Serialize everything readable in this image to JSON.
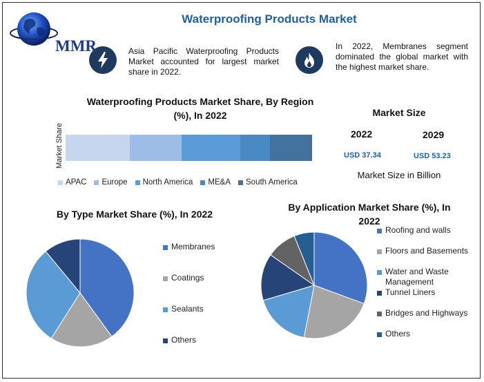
{
  "header": {
    "logo_text": "MMR",
    "title": "Waterproofing Products Market"
  },
  "info": [
    {
      "icon": "lightning-bolt-icon",
      "text": "Asia Pacific Waterproofing Products Market accounted for largest market share in 2022."
    },
    {
      "icon": "flame-icon",
      "text": "In 2022, Membranes segment dominated the global market with the highest market share."
    }
  ],
  "market_size": {
    "title": "Market Size",
    "year_a": "2022",
    "value_a": "USD 37.34",
    "year_b": "2029",
    "value_b": "USD 53.23",
    "caption": "Market Size in Billion"
  },
  "colors": {
    "title_blue": "#1f5fa6",
    "icon_navy": "#1f3a5f",
    "region": [
      "#c5d6ee",
      "#9dbde6",
      "#5b9bd8",
      "#4a89c4",
      "#44729e"
    ],
    "type": [
      "#4472c4",
      "#a5a5a5",
      "#5b9bd5",
      "#264478"
    ],
    "application": [
      "#4472c4",
      "#a5a5a5",
      "#5b9bd5",
      "#264478",
      "#636363",
      "#255e91"
    ]
  },
  "chart_data": [
    {
      "type": "bar",
      "orientation": "horizontal-stacked",
      "title": "Waterproofing Products Market Share, By Region (%), In 2022",
      "ylabel": "Market Share",
      "legend_position": "bottom",
      "categories": [
        "Market Share"
      ],
      "series": [
        {
          "name": "APAC",
          "values": [
            26
          ]
        },
        {
          "name": "Europe",
          "values": [
            21
          ]
        },
        {
          "name": "North America",
          "values": [
            24
          ]
        },
        {
          "name": "ME&A",
          "values": [
            12
          ]
        },
        {
          "name": "South America",
          "values": [
            17
          ]
        }
      ]
    },
    {
      "type": "pie",
      "title": "By Type Market Share (%), In 2022",
      "legend_position": "right",
      "labels": [
        "Membranes",
        "Coatings",
        "Sealants",
        "Others"
      ],
      "values": [
        40,
        19,
        30,
        11
      ]
    },
    {
      "type": "pie",
      "title": "By Application Market Share (%), In 2022",
      "legend_position": "right",
      "labels": [
        "Roofing and walls",
        "Floors and Basements",
        "Water and Waste Management",
        "Tunnel Liners",
        "Bridges and Highways",
        "Others"
      ],
      "values": [
        30,
        22,
        17,
        14,
        9,
        6
      ]
    }
  ]
}
